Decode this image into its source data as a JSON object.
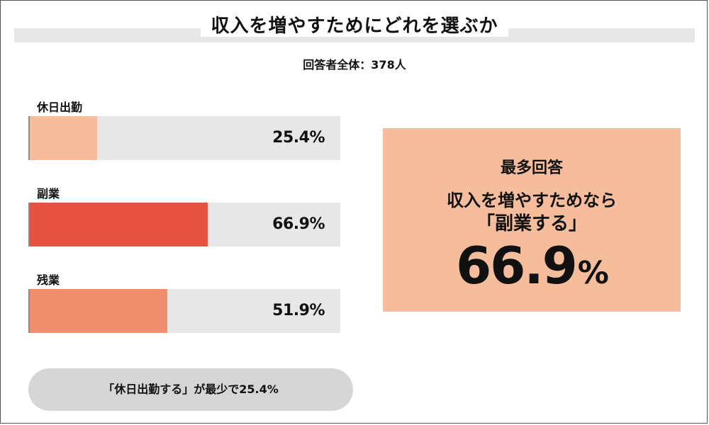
{
  "title": "収入を増やすためにどれを選ぶか",
  "respondents": "回答者全体：378人",
  "chart_data": {
    "type": "bar",
    "orientation": "horizontal",
    "title": "収入を増やすためにどれを選ぶか",
    "categories": [
      "休日出勤",
      "副業",
      "残業"
    ],
    "values": [
      25.4,
      66.9,
      51.9
    ],
    "value_labels": [
      "25.4%",
      "66.9%",
      "51.9%"
    ],
    "unit": "%",
    "xlim": [
      0,
      100
    ],
    "colors": [
      "#f5bd9b",
      "#e65342",
      "#ef8f6e"
    ],
    "track_color": "#e7e7e7",
    "grid": false
  },
  "highlight": {
    "top_label": "最多回答",
    "line1": "収入を増やすためなら",
    "line2": "「副業する」",
    "value": "66.9",
    "unit": "%",
    "color": "#f5bd9b"
  },
  "footnote": "「休日出勤する」が最少で25.4%"
}
